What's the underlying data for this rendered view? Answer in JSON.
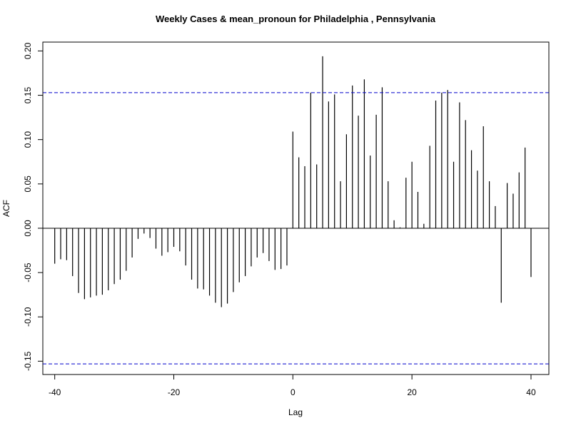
{
  "chart_data": {
    "type": "bar",
    "title": "Weekly Cases & mean_pronoun for Philadelphia , Pennsylvania",
    "xlabel": "Lag",
    "ylabel": "ACF",
    "xlim": [
      -42,
      43
    ],
    "ylim": [
      -0.165,
      0.21
    ],
    "x_ticks": [
      -40,
      -20,
      0,
      20,
      40
    ],
    "x_tick_labels": [
      "-40",
      "-20",
      "0",
      "20",
      "40"
    ],
    "y_ticks": [
      -0.15,
      -0.1,
      -0.05,
      0.0,
      0.05,
      0.1,
      0.15,
      0.2
    ],
    "y_tick_labels": [
      "-0.15",
      "-0.10",
      "-0.05",
      "0.00",
      "0.05",
      "0.10",
      "0.15",
      "0.20"
    ],
    "confidence_limits": [
      0.153,
      -0.153
    ],
    "confidence_color": "#0000cc",
    "bar_color": "#000000",
    "lags": [
      -40,
      -39,
      -38,
      -37,
      -36,
      -35,
      -34,
      -33,
      -32,
      -31,
      -30,
      -29,
      -28,
      -27,
      -26,
      -25,
      -24,
      -23,
      -22,
      -21,
      -20,
      -19,
      -18,
      -17,
      -16,
      -15,
      -14,
      -13,
      -12,
      -11,
      -10,
      -9,
      -8,
      -7,
      -6,
      -5,
      -4,
      -3,
      -2,
      -1,
      0,
      1,
      2,
      3,
      4,
      5,
      6,
      7,
      8,
      9,
      10,
      11,
      12,
      13,
      14,
      15,
      16,
      17,
      18,
      19,
      20,
      21,
      22,
      23,
      24,
      25,
      26,
      27,
      28,
      29,
      30,
      31,
      32,
      33,
      34,
      35,
      36,
      37,
      38,
      39,
      40
    ],
    "values": [
      -0.04,
      -0.035,
      -0.036,
      -0.054,
      -0.073,
      -0.08,
      -0.078,
      -0.076,
      -0.075,
      -0.07,
      -0.063,
      -0.058,
      -0.048,
      -0.033,
      -0.012,
      -0.006,
      -0.011,
      -0.023,
      -0.031,
      -0.027,
      -0.021,
      -0.026,
      -0.042,
      -0.058,
      -0.068,
      -0.069,
      -0.076,
      -0.084,
      -0.089,
      -0.085,
      -0.072,
      -0.061,
      -0.054,
      -0.043,
      -0.033,
      -0.028,
      -0.037,
      -0.047,
      -0.046,
      -0.042,
      0.109,
      0.08,
      0.07,
      0.153,
      0.072,
      0.194,
      0.143,
      0.151,
      0.053,
      0.106,
      0.161,
      0.127,
      0.168,
      0.082,
      0.128,
      0.159,
      0.053,
      0.009,
      0.001,
      0.057,
      0.075,
      0.041,
      0.005,
      0.093,
      0.144,
      0.153,
      0.156,
      0.075,
      0.142,
      0.122,
      0.088,
      0.065,
      0.115,
      0.053,
      0.025,
      -0.084,
      0.051,
      0.039,
      0.063,
      0.091,
      -0.055
    ]
  }
}
